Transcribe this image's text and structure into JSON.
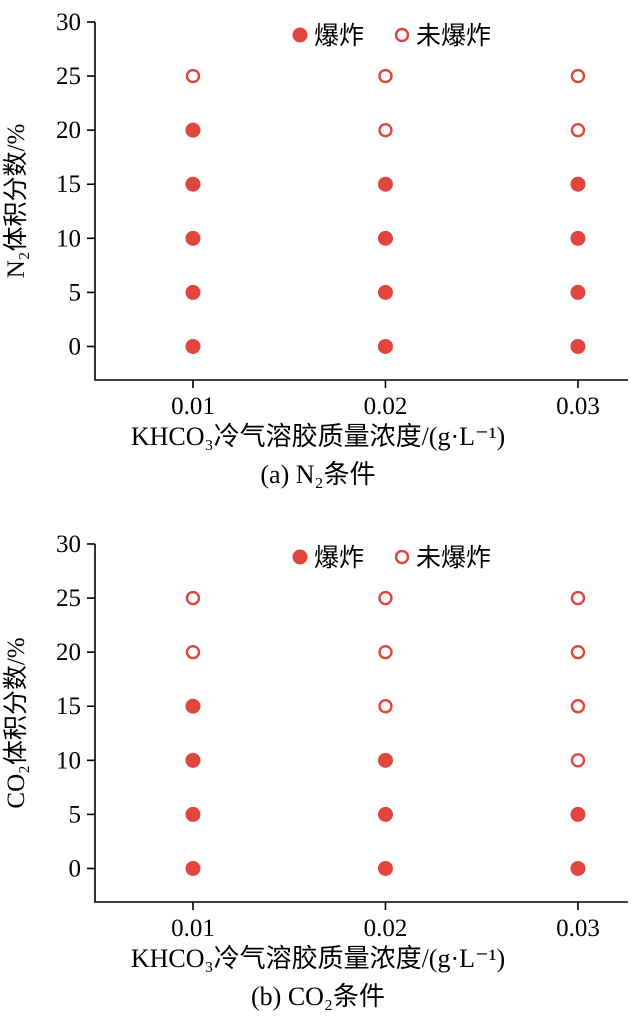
{
  "chart_data": [
    {
      "type": "scatter",
      "panel": "a",
      "title": "(a) N₂条件",
      "xlabel": "KHCO₃冷气溶胶质量浓度/(g·L⁻¹)",
      "ylabel": "N₂体积分数/%",
      "marker_color": "#e0453e",
      "xlim": [
        0.00491,
        0.0326
      ],
      "ylim": [
        -3.1,
        30
      ],
      "x_ticks": [
        0.01,
        0.02,
        0.03
      ],
      "x_tick_labels": [
        "0.01",
        "0.02",
        "0.03"
      ],
      "y_ticks": [
        0,
        5,
        10,
        15,
        20,
        25,
        30
      ],
      "legend": [
        {
          "label": "爆炸",
          "marker": "filled"
        },
        {
          "label": "未爆炸",
          "marker": "open"
        }
      ],
      "series": [
        {
          "name": "爆炸",
          "marker": "filled",
          "points": [
            [
              0.01,
              0
            ],
            [
              0.01,
              5
            ],
            [
              0.01,
              10
            ],
            [
              0.01,
              15
            ],
            [
              0.01,
              20
            ],
            [
              0.02,
              0
            ],
            [
              0.02,
              5
            ],
            [
              0.02,
              10
            ],
            [
              0.02,
              15
            ],
            [
              0.03,
              0
            ],
            [
              0.03,
              5
            ],
            [
              0.03,
              10
            ],
            [
              0.03,
              15
            ]
          ]
        },
        {
          "name": "未爆炸",
          "marker": "open",
          "points": [
            [
              0.01,
              25
            ],
            [
              0.02,
              20
            ],
            [
              0.02,
              25
            ],
            [
              0.03,
              20
            ],
            [
              0.03,
              25
            ]
          ]
        }
      ]
    },
    {
      "type": "scatter",
      "panel": "b",
      "title": "(b) CO₂条件",
      "xlabel": "KHCO₃冷气溶胶质量浓度/(g·L⁻¹)",
      "ylabel": "CO₂体积分数/%",
      "marker_color": "#e0453e",
      "xlim": [
        0.00491,
        0.0326
      ],
      "ylim": [
        -3.1,
        30
      ],
      "x_ticks": [
        0.01,
        0.02,
        0.03
      ],
      "x_tick_labels": [
        "0.01",
        "0.02",
        "0.03"
      ],
      "y_ticks": [
        0,
        5,
        10,
        15,
        20,
        25,
        30
      ],
      "legend": [
        {
          "label": "爆炸",
          "marker": "filled"
        },
        {
          "label": "未爆炸",
          "marker": "open"
        }
      ],
      "series": [
        {
          "name": "爆炸",
          "marker": "filled",
          "points": [
            [
              0.01,
              0
            ],
            [
              0.01,
              5
            ],
            [
              0.01,
              10
            ],
            [
              0.01,
              15
            ],
            [
              0.02,
              0
            ],
            [
              0.02,
              5
            ],
            [
              0.02,
              10
            ],
            [
              0.03,
              0
            ],
            [
              0.03,
              5
            ]
          ]
        },
        {
          "name": "未爆炸",
          "marker": "open",
          "points": [
            [
              0.01,
              20
            ],
            [
              0.01,
              25
            ],
            [
              0.02,
              15
            ],
            [
              0.02,
              20
            ],
            [
              0.02,
              25
            ],
            [
              0.03,
              10
            ],
            [
              0.03,
              15
            ],
            [
              0.03,
              20
            ],
            [
              0.03,
              25
            ]
          ]
        }
      ]
    }
  ]
}
